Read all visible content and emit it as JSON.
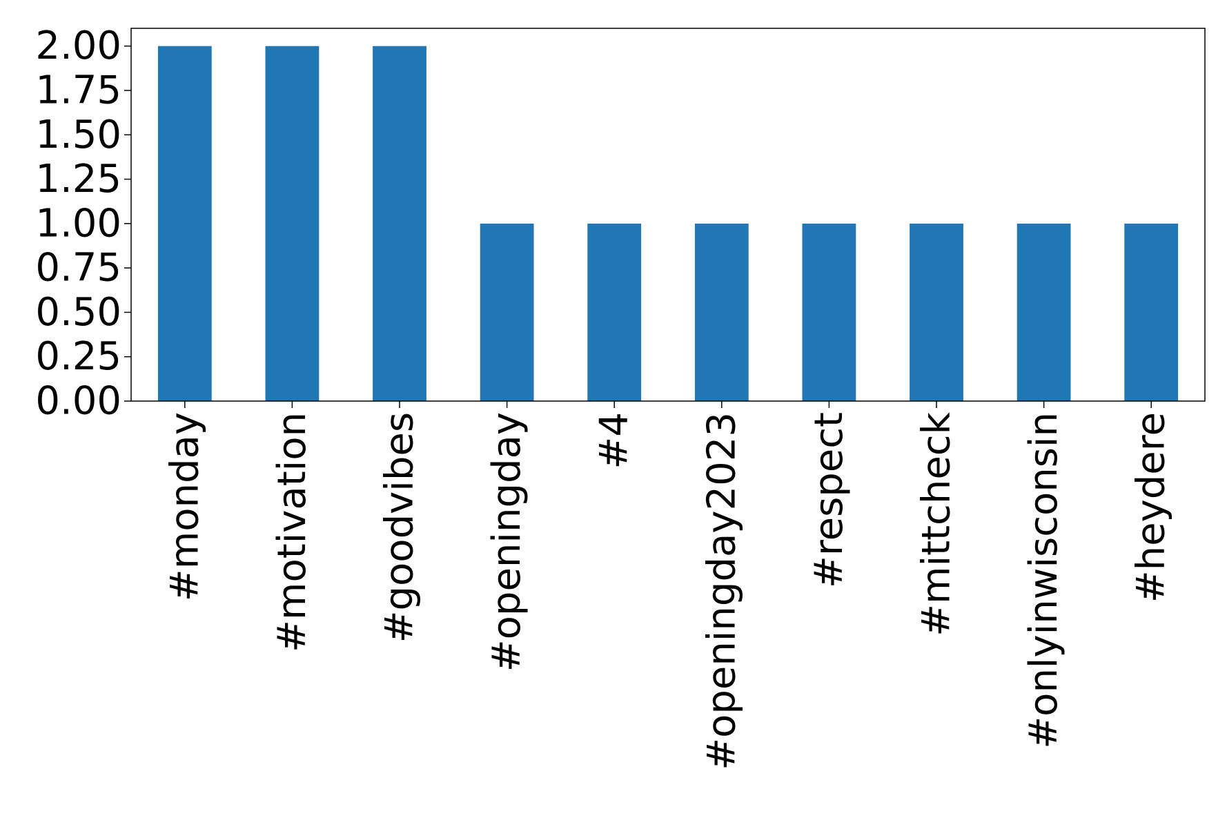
{
  "chart_data": {
    "type": "bar",
    "title": "",
    "xlabel": "",
    "ylabel": "",
    "categories": [
      "#monday",
      "#motivation",
      "#goodvibes",
      "#openingday",
      "#4",
      "#openingday2023",
      "#respect",
      "#mittcheck",
      "#onlyinwisconsin",
      "#heydere"
    ],
    "values": [
      2,
      2,
      2,
      1,
      1,
      1,
      1,
      1,
      1,
      1
    ],
    "ylim": [
      0,
      2.1
    ],
    "yticks": [
      0,
      0.25,
      0.5,
      0.75,
      1.0,
      1.25,
      1.5,
      1.75,
      2.0
    ],
    "ytick_labels": [
      "0.00",
      "0.25",
      "0.50",
      "0.75",
      "1.00",
      "1.25",
      "1.50",
      "1.75",
      "2.00"
    ],
    "grid": false,
    "legend": false,
    "colors": {
      "bar": "#2077b4",
      "axis": "#000000",
      "background": "#ffffff"
    }
  }
}
